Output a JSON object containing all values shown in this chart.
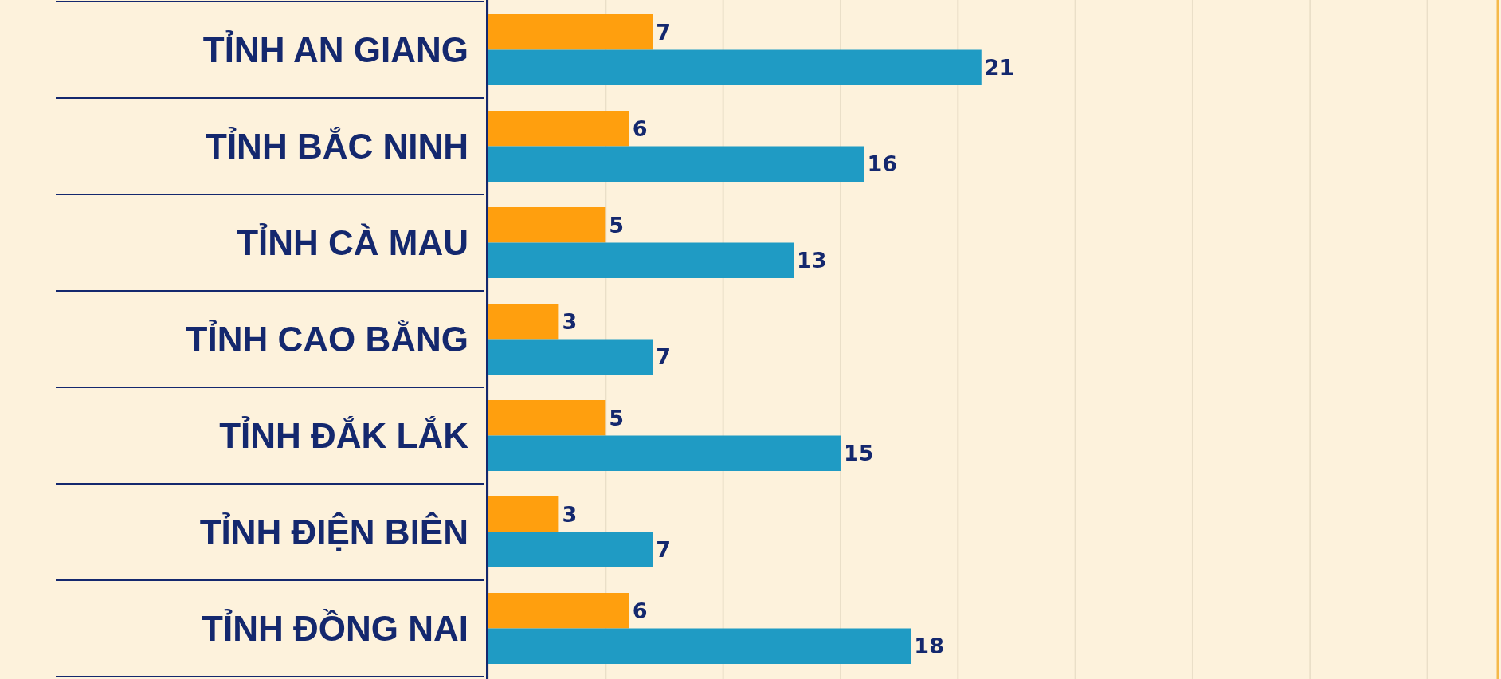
{
  "chart_data": {
    "type": "bar",
    "orientation": "horizontal",
    "categories": [
      "TỈNH AN GIANG",
      "TỈNH BẮC NINH",
      "TỈNH CÀ MAU",
      "TỈNH CAO BẰNG",
      "TỈNH ĐẮK LẮK",
      "TỈNH ĐIỆN BIÊN",
      "TỈNH ĐỒNG NAI"
    ],
    "series": [
      {
        "color": "#ff9f0e",
        "values": [
          7,
          6,
          5,
          3,
          5,
          3,
          6
        ]
      },
      {
        "color": "#1f9bc4",
        "values": [
          21,
          16,
          13,
          7,
          15,
          7,
          18
        ]
      }
    ],
    "xlim": [
      0,
      43
    ],
    "xticks": [
      {
        "value": 0,
        "label": null
      },
      {
        "value": 5,
        "label": null
      },
      {
        "value": 10,
        "label": null
      },
      {
        "value": 15,
        "label": null
      },
      {
        "value": 20,
        "label": null
      },
      {
        "value": 25,
        "label": null
      },
      {
        "value": 30,
        "label": null
      },
      {
        "value": 35,
        "label": null
      },
      {
        "value": 40,
        "label": null
      }
    ],
    "grid": "x",
    "tick_labels": "y",
    "data_labels": true
  }
}
